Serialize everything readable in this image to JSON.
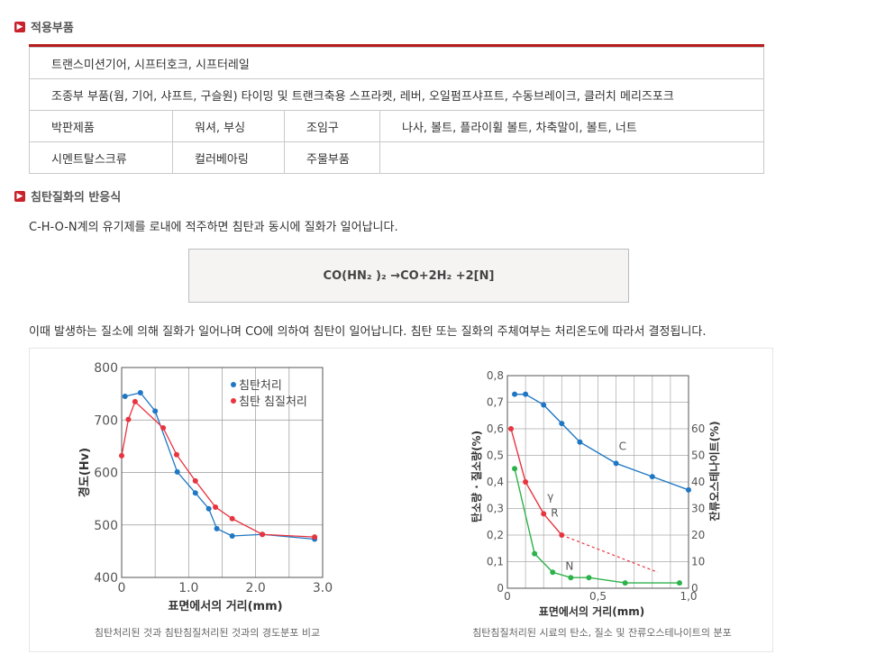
{
  "section1": {
    "title": "적용부품"
  },
  "parts_table": {
    "row1": "트랜스미션기어, 시프터호크, 시프터레일",
    "row2": "조종부 부품(웜, 기어, 샤프트, 구슬원) 타이밍 및 트랜크축용 스프라켓, 레버, 오일펌프샤프트, 수동브레이크, 클러치 메리즈포크",
    "row3": [
      "박판제품",
      "워셔, 부싱",
      "조임구",
      "나사, 볼트, 플라이휠 볼트, 차축말이, 볼트, 너트"
    ],
    "row4": [
      "시멘트탈스크류",
      "컬러베아링",
      "주물부품",
      ""
    ]
  },
  "section2": {
    "title": "침탄질화의 반응식"
  },
  "intro_text": "C-H-O-N계의 유기제를 로내에 적주하면 침탄과 동시에 질화가 일어납니다.",
  "formula": "CO(HN₂ )₂ →CO+2H₂ +2[N]",
  "explain_text": "이때 발생하는 질소에 의해 질화가 일어나며 CO에 의하여 침탄이 일어납니다. 침탄 또는 질화의 주체여부는 처리온도에 따라서 결정됩니다.",
  "chart_data": [
    {
      "type": "line",
      "xlabel": "표면에서의 거리(mm)",
      "ylabel": "경도(Hv)",
      "xlim": [
        0,
        3.0
      ],
      "ylim": [
        400,
        800
      ],
      "xticks": [
        "0",
        "1.0",
        "2.0",
        "3.0"
      ],
      "yticks": [
        "400",
        "500",
        "600",
        "700",
        "800"
      ],
      "legend_position": "top-right",
      "grid": true,
      "caption": "침탄처리된 것과 침탄침질처리된 것과의 경도분포 비교",
      "series": [
        {
          "name": "침탄처리",
          "color": "#1f77c4",
          "x": [
            0.05,
            0.28,
            0.5,
            0.83,
            1.1,
            1.3,
            1.42,
            1.65,
            2.1,
            2.88
          ],
          "y": [
            745,
            752,
            717,
            601,
            561,
            531,
            493,
            479,
            482,
            473
          ]
        },
        {
          "name": "침탄 침질처리",
          "color": "#e8343f",
          "x": [
            0.0,
            0.1,
            0.2,
            0.62,
            0.82,
            1.1,
            1.4,
            1.65,
            2.1,
            2.88
          ],
          "y": [
            632,
            701,
            735,
            685,
            634,
            584,
            534,
            512,
            482,
            477
          ]
        }
      ]
    },
    {
      "type": "line",
      "xlabel": "표면에서의 거리(mm)",
      "ylabel": "탄소량 · 질소량(%)",
      "y2label": "잔류오스테나이트(%)",
      "xlim": [
        0,
        1.0
      ],
      "ylim": [
        0,
        0.8
      ],
      "y2lim": [
        0,
        80
      ],
      "xticks": [
        "0",
        "0,5",
        "1,0"
      ],
      "yticks": [
        "0",
        "0,1",
        "0,2",
        "0,3",
        "0,4",
        "0,5",
        "0,6",
        "0,7",
        "0,8"
      ],
      "y2ticks": [
        "0",
        "10",
        "20",
        "30",
        "40",
        "50",
        "60"
      ],
      "grid": true,
      "caption": "침탄침질처리된 시료의 탄소, 질소 및 잔류오스테나이트의 분포",
      "series": [
        {
          "name": "C",
          "color": "#1f77c4",
          "x": [
            0.04,
            0.1,
            0.2,
            0.3,
            0.4,
            0.6,
            0.8,
            1.0
          ],
          "y": [
            0.73,
            0.73,
            0.69,
            0.62,
            0.55,
            0.47,
            0.42,
            0.37
          ]
        },
        {
          "name": "R",
          "color": "#e8343f",
          "axis": "right",
          "x": [
            0.02,
            0.1,
            0.2,
            0.3
          ],
          "y": [
            60,
            40,
            28,
            20
          ],
          "extrapolated": {
            "x": [
              0.3,
              0.83
            ],
            "y": [
              20,
              6
            ]
          }
        },
        {
          "name": "N",
          "color": "#2db24a",
          "x": [
            0.04,
            0.15,
            0.25,
            0.35,
            0.45,
            0.65,
            0.95
          ],
          "y": [
            0.45,
            0.13,
            0.06,
            0.04,
            0.04,
            0.02,
            0.02
          ]
        }
      ],
      "annotations": [
        "γ"
      ]
    }
  ]
}
